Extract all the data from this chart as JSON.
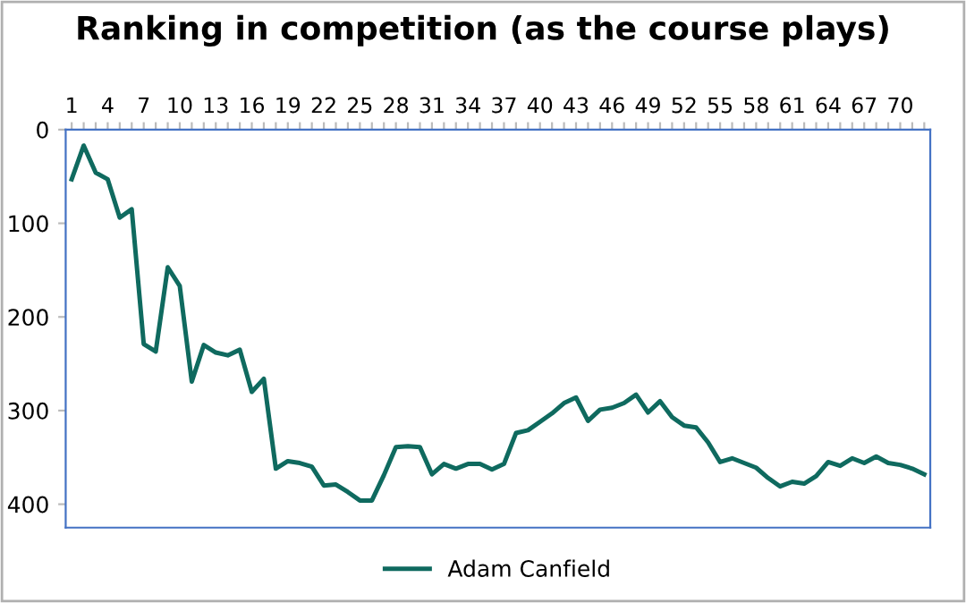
{
  "chart_data": {
    "type": "line",
    "title": "Ranking in competition (as the course plays)",
    "categories": [
      "1",
      null,
      null,
      "4",
      null,
      null,
      "7",
      null,
      null,
      "10",
      null,
      null,
      "13",
      null,
      null,
      "16",
      null,
      null,
      "19",
      null,
      null,
      "22",
      null,
      null,
      "25",
      null,
      null,
      "28",
      null,
      null,
      "31",
      null,
      null,
      "34",
      null,
      null,
      "37",
      null,
      null,
      "40",
      null,
      null,
      "43",
      null,
      null,
      "46",
      null,
      null,
      "49",
      null,
      null,
      "52",
      null,
      null,
      "55",
      null,
      null,
      "58",
      null,
      null,
      "61",
      null,
      null,
      "64",
      null,
      null,
      "67",
      null,
      null,
      "70",
      null,
      null
    ],
    "series": [
      {
        "name": "Adam Canfield",
        "color": "#0f6a5f",
        "values": [
          53,
          17,
          46,
          53,
          94,
          85,
          229,
          237,
          147,
          167,
          269,
          230,
          238,
          241,
          235,
          280,
          266,
          362,
          354,
          356,
          360,
          380,
          379,
          387,
          396,
          396,
          369,
          339,
          338,
          339,
          368,
          357,
          362,
          357,
          357,
          363,
          357,
          324,
          321,
          312,
          303,
          292,
          286,
          311,
          299,
          297,
          292,
          283,
          302,
          290,
          307,
          316,
          318,
          334,
          355,
          351,
          356,
          361,
          372,
          381,
          376,
          378,
          370,
          355,
          359,
          351,
          356,
          349,
          356,
          358,
          362,
          368
        ]
      }
    ],
    "ylim": [
      425,
      0
    ],
    "yticks": [
      0,
      100,
      200,
      300,
      400
    ],
    "grid": false,
    "legend": "bottom",
    "marker": "none",
    "line_style": "solid"
  }
}
